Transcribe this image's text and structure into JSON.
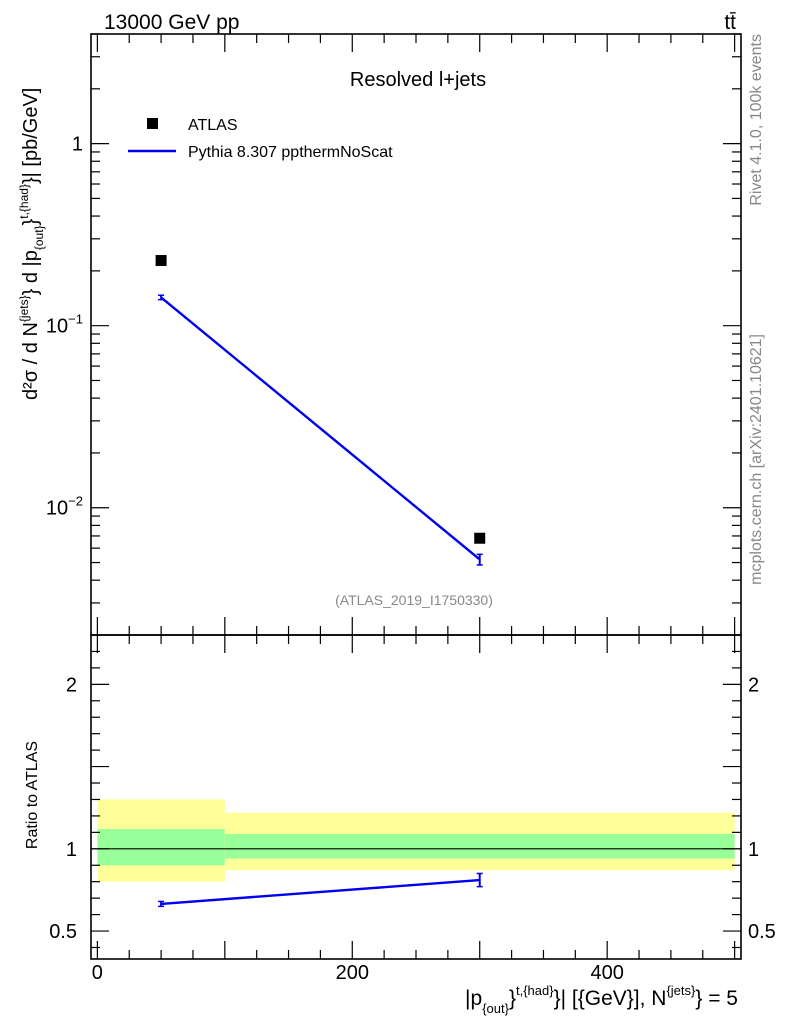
{
  "header": {
    "left": "13000 GeV pp",
    "right": "tt̄"
  },
  "side_labels": {
    "rivet": "Rivet 4.1.0,  100k events",
    "mcplots": "mcplots.cern.ch [arXiv:2401.10621]"
  },
  "colors": {
    "mc": "#0000ee",
    "data": "#000000",
    "band_inner": "#99ff99",
    "band_outer": "#ffff99"
  },
  "chart_data": [
    {
      "type": "scatter",
      "title": "Resolved l+jets",
      "watermark": "(ATLAS_2019_I1750330)",
      "yscale": "log",
      "xlim": [
        -5,
        505
      ],
      "ylim": [
        0.002,
        4.0
      ],
      "ylabel": {
        "main": "d²σ / d N",
        "sup1": "{jets}",
        "mid": "} d |p",
        "sub": "{out}",
        "sup2": "}",
        "sup3": "t,{had}",
        "end": "}| [pb/GeV]"
      },
      "yticks": [
        {
          "value": 1,
          "label": "1"
        },
        {
          "value": 0.1,
          "label": "10",
          "exp": "−1"
        },
        {
          "value": 0.01,
          "label": "10",
          "exp": "−2"
        }
      ],
      "legend": [
        {
          "label": "ATLAS",
          "kind": "marker"
        },
        {
          "label": "Pythia 8.307 ppthermNoScat",
          "kind": "line"
        }
      ],
      "series": [
        {
          "name": "ATLAS",
          "x": [
            50,
            300
          ],
          "y": [
            0.228,
            0.0068
          ]
        },
        {
          "name": "Pythia 8.307 ppthermNoScat",
          "x": [
            50,
            300
          ],
          "y": [
            0.143,
            0.0052
          ],
          "yerr": [
            0.004,
            0.00035
          ]
        }
      ]
    },
    {
      "type": "line",
      "ylabel": "Ratio to ATLAS",
      "xlim": [
        -5,
        505
      ],
      "ylim": [
        0.33,
        2.3
      ],
      "yticks": [
        {
          "value": 2,
          "label": "2"
        },
        {
          "value": 1,
          "label": "1"
        },
        {
          "value": 0.5,
          "label": "0.5"
        }
      ],
      "xticks": [
        {
          "value": 0,
          "label": "0"
        },
        {
          "value": 200,
          "label": "200"
        },
        {
          "value": 400,
          "label": "400"
        }
      ],
      "xlabel": {
        "a": "|p",
        "sub": "{out}",
        "sup1": "}",
        "sup2": "t,{had}",
        "b": "}| [{GeV}], N",
        "sup3": "{jets}",
        "c": "} = 5"
      },
      "bands": [
        {
          "x0": 0,
          "x1": 100,
          "inner": [
            0.9,
            1.12
          ],
          "outer": [
            0.8,
            1.3
          ]
        },
        {
          "x0": 100,
          "x1": 500,
          "inner": [
            0.94,
            1.09
          ],
          "outer": [
            0.87,
            1.22
          ]
        }
      ],
      "series": [
        {
          "name": "Pythia 8.307 ppthermNoScat",
          "x": [
            50,
            300
          ],
          "y": [
            0.665,
            0.81
          ],
          "yerr": [
            0.015,
            0.04
          ]
        }
      ]
    }
  ]
}
